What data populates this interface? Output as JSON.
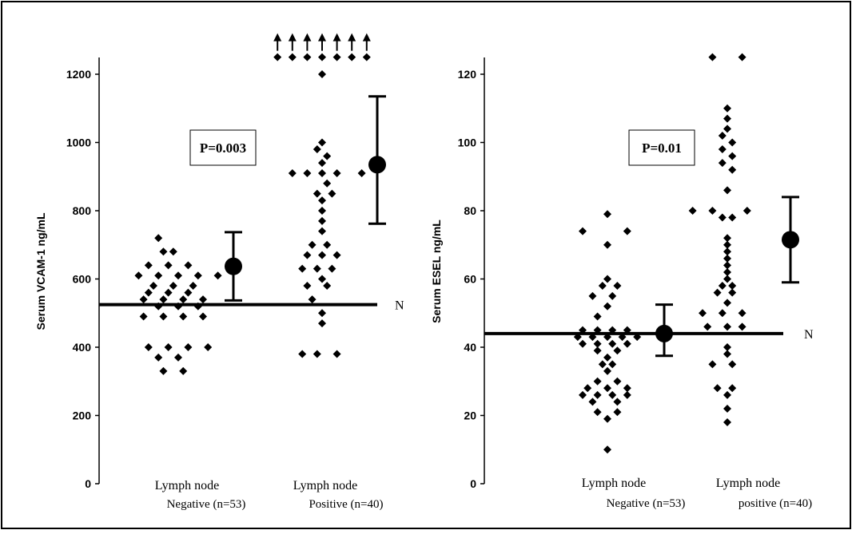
{
  "chart_data": [
    {
      "type": "scatter",
      "ylabel": "Serum VCAM-1 ng/mL",
      "ylim": [
        0,
        1250
      ],
      "yticks": [
        0,
        200,
        400,
        600,
        800,
        1000,
        1200
      ],
      "annotation": "P=0.003",
      "reference_label": "N",
      "reference_value": 525,
      "groups": [
        {
          "label_line1": "Lymph node",
          "label_line2": "Negative (n=53)",
          "points": [
            [
              -4,
              720
            ],
            [
              -3,
              680
            ],
            [
              -1,
              680
            ],
            [
              -6,
              640
            ],
            [
              -2,
              640
            ],
            [
              2,
              640
            ],
            [
              -8,
              610
            ],
            [
              -4,
              610
            ],
            [
              0,
              610
            ],
            [
              4,
              610
            ],
            [
              8,
              610
            ],
            [
              -5,
              580
            ],
            [
              -1,
              580
            ],
            [
              3,
              580
            ],
            [
              -6,
              560
            ],
            [
              -2,
              560
            ],
            [
              2,
              560
            ],
            [
              -7,
              540
            ],
            [
              -3,
              540
            ],
            [
              1,
              540
            ],
            [
              5,
              540
            ],
            [
              -4,
              520
            ],
            [
              0,
              520
            ],
            [
              4,
              520
            ],
            [
              -7,
              490
            ],
            [
              -3,
              490
            ],
            [
              1,
              490
            ],
            [
              5,
              490
            ],
            [
              -6,
              400
            ],
            [
              -2,
              400
            ],
            [
              2,
              400
            ],
            [
              6,
              400
            ],
            [
              -4,
              370
            ],
            [
              0,
              370
            ],
            [
              -3,
              330
            ],
            [
              1,
              330
            ]
          ],
          "mean": 637,
          "err_low": 537,
          "err_high": 737
        },
        {
          "label_line1": "Lymph node",
          "label_line2": "Positive (n=40)",
          "points": [
            [
              -9,
              1250
            ],
            [
              -6,
              1250
            ],
            [
              -3,
              1250
            ],
            [
              0,
              1250
            ],
            [
              3,
              1250
            ],
            [
              6,
              1250
            ],
            [
              9,
              1250
            ],
            [
              0,
              1200
            ],
            [
              0,
              1000
            ],
            [
              -1,
              980
            ],
            [
              1,
              960
            ],
            [
              0,
              940
            ],
            [
              -6,
              910
            ],
            [
              -3,
              910
            ],
            [
              0,
              910
            ],
            [
              3,
              910
            ],
            [
              8,
              910
            ],
            [
              1,
              880
            ],
            [
              -1,
              850
            ],
            [
              2,
              850
            ],
            [
              0,
              830
            ],
            [
              0,
              800
            ],
            [
              0,
              770
            ],
            [
              0,
              740
            ],
            [
              -2,
              700
            ],
            [
              1,
              700
            ],
            [
              -3,
              670
            ],
            [
              0,
              670
            ],
            [
              3,
              670
            ],
            [
              -4,
              630
            ],
            [
              -1,
              630
            ],
            [
              2,
              630
            ],
            [
              0,
              600
            ],
            [
              -3,
              580
            ],
            [
              1,
              580
            ],
            [
              -2,
              540
            ],
            [
              0,
              500
            ],
            [
              0,
              470
            ],
            [
              -4,
              380
            ],
            [
              -1,
              380
            ],
            [
              3,
              380
            ]
          ],
          "arrows_above": 7,
          "mean": 935,
          "err_low": 762,
          "err_high": 1135
        }
      ]
    },
    {
      "type": "scatter",
      "ylabel": "Serum ESEL ng/mL",
      "ylim": [
        0,
        125
      ],
      "yticks": [
        0,
        20,
        40,
        60,
        80,
        100,
        120
      ],
      "annotation": "P=0.01",
      "reference_label": "N",
      "reference_value": 44,
      "groups": [
        {
          "label_line1": "Lymph node",
          "label_line2": "Negative (n=53)",
          "points": [
            [
              0,
              79
            ],
            [
              -5,
              74
            ],
            [
              4,
              74
            ],
            [
              0,
              70
            ],
            [
              0,
              60
            ],
            [
              -1,
              58
            ],
            [
              2,
              58
            ],
            [
              -3,
              55
            ],
            [
              1,
              55
            ],
            [
              0,
              52
            ],
            [
              -2,
              49
            ],
            [
              -5,
              45
            ],
            [
              -2,
              45
            ],
            [
              1,
              45
            ],
            [
              4,
              45
            ],
            [
              -6,
              43
            ],
            [
              -3,
              43
            ],
            [
              0,
              43
            ],
            [
              3,
              43
            ],
            [
              6,
              43
            ],
            [
              -5,
              41
            ],
            [
              -2,
              41
            ],
            [
              1,
              41
            ],
            [
              4,
              41
            ],
            [
              -2,
              39
            ],
            [
              2,
              39
            ],
            [
              0,
              37
            ],
            [
              -1,
              35
            ],
            [
              1,
              35
            ],
            [
              0,
              33
            ],
            [
              -2,
              30
            ],
            [
              2,
              30
            ],
            [
              -4,
              28
            ],
            [
              0,
              28
            ],
            [
              4,
              28
            ],
            [
              -5,
              26
            ],
            [
              -2,
              26
            ],
            [
              1,
              26
            ],
            [
              4,
              26
            ],
            [
              -3,
              24
            ],
            [
              2,
              24
            ],
            [
              -2,
              21
            ],
            [
              2,
              21
            ],
            [
              0,
              19
            ],
            [
              0,
              10
            ]
          ],
          "mean": 44,
          "err_low": 37.5,
          "err_high": 52.5
        },
        {
          "label_line1": "Lymph node",
          "label_line2": "positive (n=40)",
          "points": [
            [
              -3,
              125
            ],
            [
              3,
              125
            ],
            [
              0,
              110
            ],
            [
              0,
              107
            ],
            [
              0,
              104
            ],
            [
              -1,
              102
            ],
            [
              1,
              100
            ],
            [
              -1,
              98
            ],
            [
              1,
              96
            ],
            [
              -1,
              94
            ],
            [
              1,
              92
            ],
            [
              0,
              86
            ],
            [
              -7,
              80
            ],
            [
              -3,
              80
            ],
            [
              4,
              80
            ],
            [
              -1,
              78
            ],
            [
              1,
              78
            ],
            [
              0,
              72
            ],
            [
              0,
              70
            ],
            [
              0,
              68
            ],
            [
              0,
              66
            ],
            [
              0,
              64
            ],
            [
              0,
              62
            ],
            [
              0,
              60
            ],
            [
              -1,
              58
            ],
            [
              1,
              58
            ],
            [
              -2,
              56
            ],
            [
              1,
              56
            ],
            [
              0,
              53
            ],
            [
              -5,
              50
            ],
            [
              -1,
              50
            ],
            [
              3,
              50
            ],
            [
              -4,
              46
            ],
            [
              0,
              46
            ],
            [
              3,
              46
            ],
            [
              0,
              40
            ],
            [
              0,
              38
            ],
            [
              -3,
              35
            ],
            [
              1,
              35
            ],
            [
              -2,
              28
            ],
            [
              1,
              28
            ],
            [
              0,
              26
            ],
            [
              0,
              22
            ],
            [
              0,
              18
            ]
          ],
          "mean": 71.5,
          "err_low": 59,
          "err_high": 84
        }
      ]
    }
  ]
}
